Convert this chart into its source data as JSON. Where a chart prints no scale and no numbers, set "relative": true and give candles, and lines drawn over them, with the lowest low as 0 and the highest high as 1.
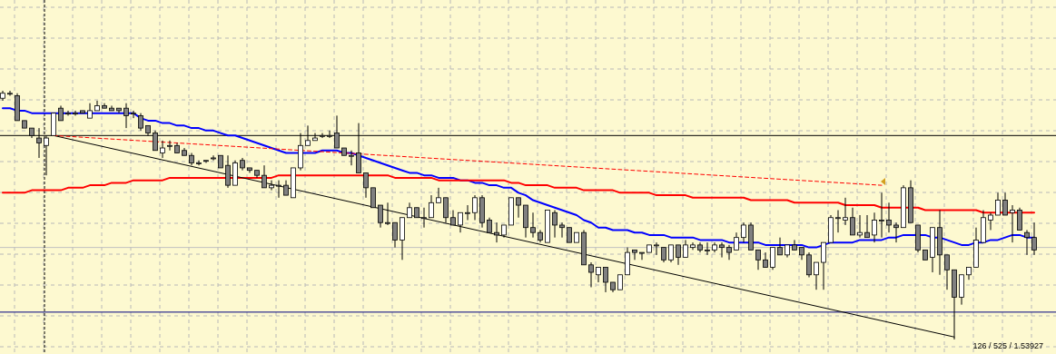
{
  "chart_data": {
    "type": "candlestick",
    "relative": true,
    "grid": true,
    "categories": [
      null,
      null,
      null,
      null,
      null,
      null,
      null,
      null,
      null,
      null,
      null,
      null,
      null,
      null,
      null,
      null,
      null,
      null,
      null,
      null,
      null,
      null,
      null,
      null,
      null,
      null,
      null,
      null,
      null,
      null,
      null,
      null,
      null,
      null,
      null,
      null,
      null,
      null,
      null,
      null,
      null,
      null,
      null,
      null,
      null,
      null,
      null,
      null,
      null,
      null,
      null,
      null,
      null,
      null,
      null,
      null,
      null,
      null,
      null,
      null,
      null,
      null,
      null,
      null,
      null,
      null,
      null,
      null,
      null,
      null,
      null,
      null,
      null,
      null,
      null,
      null,
      null,
      null,
      null,
      null,
      null,
      null,
      null,
      null,
      null,
      null,
      null,
      null,
      null,
      null,
      null,
      null,
      null,
      null,
      null,
      null,
      null,
      null,
      null,
      null,
      null,
      null,
      null,
      null,
      null,
      null,
      null,
      null,
      null,
      null,
      null,
      null,
      null,
      null,
      null,
      null,
      null,
      null,
      null,
      null,
      null,
      null,
      null,
      null,
      null,
      null,
      null,
      null,
      null,
      null,
      null,
      null,
      null,
      null,
      null,
      null,
      null,
      null,
      null,
      null,
      null,
      null,
      null
    ],
    "ohlc": [
      [
        0.97,
        1.0,
        0.96,
        0.99
      ],
      [
        0.99,
        1.0,
        0.98,
        0.99
      ],
      [
        0.98,
        0.99,
        0.88,
        0.88
      ],
      [
        0.88,
        0.88,
        0.85,
        0.85
      ],
      [
        0.85,
        0.85,
        0.81,
        0.82
      ],
      [
        0.81,
        0.85,
        0.73,
        0.79
      ],
      [
        0.78,
        0.82,
        0.66,
        0.81
      ],
      [
        0.82,
        0.91,
        0.82,
        0.91
      ],
      [
        0.93,
        0.94,
        0.88,
        0.88
      ],
      [
        0.91,
        0.92,
        0.9,
        0.91
      ],
      [
        0.91,
        0.92,
        0.9,
        0.91
      ],
      [
        0.92,
        0.92,
        0.91,
        0.91
      ],
      [
        0.89,
        0.95,
        0.89,
        0.92
      ],
      [
        0.92,
        0.96,
        0.92,
        0.94
      ],
      [
        0.94,
        0.95,
        0.93,
        0.93
      ],
      [
        0.93,
        0.94,
        0.92,
        0.92
      ],
      [
        0.93,
        0.93,
        0.91,
        0.92
      ],
      [
        0.93,
        0.95,
        0.85,
        0.9
      ],
      [
        0.91,
        0.92,
        0.89,
        0.91
      ],
      [
        0.9,
        0.91,
        0.84,
        0.85
      ],
      [
        0.86,
        0.86,
        0.82,
        0.83
      ],
      [
        0.83,
        0.84,
        0.76,
        0.76
      ],
      [
        0.75,
        0.8,
        0.73,
        0.77
      ],
      [
        0.78,
        0.8,
        0.76,
        0.78
      ],
      [
        0.78,
        0.79,
        0.75,
        0.75
      ],
      [
        0.76,
        0.77,
        0.74,
        0.74
      ],
      [
        0.74,
        0.75,
        0.7,
        0.71
      ],
      [
        0.71,
        0.72,
        0.7,
        0.71
      ],
      [
        0.72,
        0.72,
        0.71,
        0.72
      ],
      [
        0.73,
        0.74,
        0.72,
        0.73
      ],
      [
        0.74,
        0.74,
        0.69,
        0.69
      ],
      [
        0.7,
        0.74,
        0.61,
        0.62
      ],
      [
        0.62,
        0.72,
        0.62,
        0.71
      ],
      [
        0.72,
        0.73,
        0.68,
        0.69
      ],
      [
        0.69,
        0.69,
        0.67,
        0.68
      ],
      [
        0.68,
        0.68,
        0.65,
        0.66
      ],
      [
        0.66,
        0.7,
        0.61,
        0.61
      ],
      [
        0.61,
        0.64,
        0.6,
        0.62
      ],
      [
        0.62,
        0.64,
        0.57,
        0.62
      ],
      [
        0.62,
        0.64,
        0.58,
        0.58
      ],
      [
        0.57,
        0.69,
        0.57,
        0.69
      ],
      [
        0.69,
        0.83,
        0.68,
        0.78
      ],
      [
        0.78,
        0.86,
        0.78,
        0.8
      ],
      [
        0.8,
        0.83,
        0.8,
        0.81
      ],
      [
        0.82,
        0.83,
        0.81,
        0.82
      ],
      [
        0.82,
        0.84,
        0.81,
        0.82
      ],
      [
        0.83,
        0.9,
        0.77,
        0.77
      ],
      [
        0.77,
        0.77,
        0.74,
        0.74
      ],
      [
        0.74,
        0.76,
        0.7,
        0.74
      ],
      [
        0.75,
        0.87,
        0.67,
        0.67
      ],
      [
        0.67,
        0.67,
        0.57,
        0.61
      ],
      [
        0.61,
        0.61,
        0.53,
        0.53
      ],
      [
        0.54,
        0.54,
        0.45,
        0.47
      ],
      [
        0.47,
        0.55,
        0.46,
        0.47
      ],
      [
        0.47,
        0.47,
        0.37,
        0.4
      ],
      [
        0.4,
        0.49,
        0.32,
        0.49
      ],
      [
        0.49,
        0.55,
        0.49,
        0.53
      ],
      [
        0.53,
        0.53,
        0.49,
        0.49
      ],
      [
        0.49,
        0.53,
        0.45,
        0.49
      ],
      [
        0.49,
        0.58,
        0.49,
        0.55
      ],
      [
        0.55,
        0.61,
        0.55,
        0.57
      ],
      [
        0.57,
        0.57,
        0.47,
        0.49
      ],
      [
        0.49,
        0.52,
        0.46,
        0.46
      ],
      [
        0.46,
        0.51,
        0.43,
        0.51
      ],
      [
        0.51,
        0.54,
        0.48,
        0.51
      ],
      [
        0.51,
        0.58,
        0.48,
        0.57
      ],
      [
        0.57,
        0.58,
        0.45,
        0.47
      ],
      [
        0.48,
        0.49,
        0.43,
        0.43
      ],
      [
        0.43,
        0.47,
        0.39,
        0.42
      ],
      [
        0.42,
        0.46,
        0.41,
        0.46
      ],
      [
        0.46,
        0.57,
        0.46,
        0.57
      ],
      [
        0.57,
        0.57,
        0.49,
        0.54
      ],
      [
        0.54,
        0.54,
        0.41,
        0.45
      ],
      [
        0.45,
        0.51,
        0.41,
        0.43
      ],
      [
        0.43,
        0.44,
        0.39,
        0.4
      ],
      [
        0.39,
        0.52,
        0.39,
        0.52
      ],
      [
        0.51,
        0.52,
        0.41,
        0.46
      ],
      [
        0.46,
        0.47,
        0.41,
        0.45
      ],
      [
        0.45,
        0.45,
        0.39,
        0.39
      ],
      [
        0.39,
        0.43,
        0.39,
        0.43
      ],
      [
        0.43,
        0.44,
        0.3,
        0.3
      ],
      [
        0.3,
        0.31,
        0.21,
        0.27
      ],
      [
        0.26,
        0.29,
        0.23,
        0.29
      ],
      [
        0.29,
        0.29,
        0.19,
        0.23
      ],
      [
        0.23,
        0.23,
        0.19,
        0.2
      ],
      [
        0.2,
        0.26,
        0.2,
        0.26
      ],
      [
        0.26,
        0.37,
        0.26,
        0.35
      ],
      [
        0.36,
        0.36,
        0.32,
        0.35
      ],
      [
        0.35,
        0.35,
        0.32,
        0.35
      ],
      [
        0.35,
        0.38,
        0.35,
        0.38
      ],
      [
        0.38,
        0.39,
        0.34,
        0.38
      ],
      [
        0.37,
        0.37,
        0.31,
        0.32
      ],
      [
        0.32,
        0.38,
        0.31,
        0.38
      ],
      [
        0.38,
        0.38,
        0.3,
        0.33
      ],
      [
        0.33,
        0.4,
        0.33,
        0.38
      ],
      [
        0.37,
        0.39,
        0.36,
        0.38
      ],
      [
        0.38,
        0.39,
        0.35,
        0.36
      ],
      [
        0.36,
        0.39,
        0.34,
        0.36
      ],
      [
        0.36,
        0.39,
        0.35,
        0.38
      ],
      [
        0.38,
        0.39,
        0.33,
        0.37
      ],
      [
        0.37,
        0.38,
        0.32,
        0.35
      ],
      [
        0.36,
        0.43,
        0.36,
        0.41
      ],
      [
        0.41,
        0.47,
        0.39,
        0.46
      ],
      [
        0.46,
        0.47,
        0.36,
        0.36
      ],
      [
        0.36,
        0.36,
        0.28,
        0.32
      ],
      [
        0.32,
        0.35,
        0.29,
        0.29
      ],
      [
        0.29,
        0.37,
        0.28,
        0.37
      ],
      [
        0.37,
        0.41,
        0.34,
        0.34
      ],
      [
        0.34,
        0.38,
        0.33,
        0.38
      ],
      [
        0.38,
        0.4,
        0.36,
        0.36
      ],
      [
        0.37,
        0.37,
        0.32,
        0.34
      ],
      [
        0.34,
        0.35,
        0.25,
        0.26
      ],
      [
        0.26,
        0.31,
        0.2,
        0.31
      ],
      [
        0.31,
        0.39,
        0.2,
        0.39
      ],
      [
        0.39,
        0.5,
        0.39,
        0.49
      ],
      [
        0.49,
        0.52,
        0.43,
        0.49
      ],
      [
        0.48,
        0.57,
        0.46,
        0.49
      ],
      [
        0.49,
        0.53,
        0.42,
        0.42
      ],
      [
        0.42,
        0.5,
        0.41,
        0.43
      ],
      [
        0.43,
        0.5,
        0.41,
        0.41
      ],
      [
        0.42,
        0.51,
        0.39,
        0.48
      ],
      [
        0.48,
        0.59,
        0.41,
        0.48
      ],
      [
        0.48,
        0.55,
        0.43,
        0.46
      ],
      [
        0.46,
        0.47,
        0.39,
        0.45
      ],
      [
        0.45,
        0.62,
        0.45,
        0.61
      ],
      [
        0.61,
        0.64,
        0.47,
        0.47
      ],
      [
        0.46,
        0.46,
        0.35,
        0.36
      ],
      [
        0.36,
        0.36,
        0.32,
        0.32
      ],
      [
        0.33,
        0.45,
        0.27,
        0.45
      ],
      [
        0.45,
        0.52,
        0.26,
        0.34
      ],
      [
        0.34,
        0.34,
        0.2,
        0.28
      ],
      [
        0.28,
        0.28,
        0.0,
        0.17
      ],
      [
        0.17,
        0.26,
        0.14,
        0.26
      ],
      [
        0.26,
        0.29,
        0.24,
        0.29
      ],
      [
        0.29,
        0.45,
        0.29,
        0.4
      ],
      [
        0.39,
        0.52,
        0.39,
        0.49
      ],
      [
        0.48,
        0.51,
        0.44,
        0.5
      ],
      [
        0.5,
        0.59,
        0.5,
        0.56
      ],
      [
        0.56,
        0.59,
        0.5,
        0.5
      ],
      [
        0.51,
        0.54,
        0.39,
        0.52
      ],
      [
        0.52,
        0.53,
        0.44,
        0.44
      ],
      [
        0.43,
        0.44,
        0.34,
        0.41
      ],
      [
        0.41,
        0.47,
        0.34,
        0.36
      ]
    ],
    "series": [
      {
        "type": "line",
        "color": "#0000ff",
        "values": [
          0.93,
          0.93,
          0.92,
          0.92,
          0.91,
          0.91,
          0.91,
          0.91,
          0.91,
          0.91,
          0.91,
          0.91,
          0.91,
          0.91,
          0.91,
          0.91,
          0.91,
          0.91,
          0.91,
          0.89,
          0.88,
          0.88,
          0.87,
          0.87,
          0.86,
          0.86,
          0.85,
          0.85,
          0.84,
          0.84,
          0.83,
          0.82,
          0.82,
          0.81,
          0.8,
          0.79,
          0.78,
          0.77,
          0.76,
          0.75,
          0.75,
          0.75,
          0.75,
          0.75,
          0.76,
          0.76,
          0.76,
          0.75,
          0.75,
          0.74,
          0.73,
          0.72,
          0.71,
          0.7,
          0.69,
          0.68,
          0.67,
          0.67,
          0.66,
          0.66,
          0.65,
          0.65,
          0.65,
          0.64,
          0.64,
          0.63,
          0.63,
          0.62,
          0.62,
          0.61,
          0.61,
          0.59,
          0.58,
          0.56,
          0.55,
          0.54,
          0.53,
          0.52,
          0.51,
          0.5,
          0.48,
          0.47,
          0.45,
          0.45,
          0.44,
          0.44,
          0.44,
          0.43,
          0.43,
          0.42,
          0.42,
          0.42,
          0.41,
          0.41,
          0.41,
          0.41,
          0.4,
          0.4,
          0.4,
          0.4,
          0.39,
          0.39,
          0.39,
          0.39,
          0.39,
          0.38,
          0.38,
          0.38,
          0.38,
          0.38,
          0.38,
          0.37,
          0.37,
          0.38,
          0.39,
          0.39,
          0.39,
          0.39,
          0.4,
          0.4,
          0.4,
          0.4,
          0.41,
          0.41,
          0.42,
          0.42,
          0.42,
          0.42,
          0.41,
          0.41,
          0.4,
          0.39,
          0.38,
          0.38,
          0.39,
          0.39,
          0.4,
          0.4,
          0.41,
          0.42,
          0.42,
          0.41,
          0.41
        ]
      },
      {
        "type": "line",
        "color": "#ff0000",
        "values": [
          0.59,
          0.59,
          0.59,
          0.59,
          0.6,
          0.6,
          0.6,
          0.6,
          0.6,
          0.61,
          0.61,
          0.61,
          0.62,
          0.62,
          0.62,
          0.63,
          0.63,
          0.63,
          0.64,
          0.64,
          0.64,
          0.64,
          0.64,
          0.65,
          0.65,
          0.65,
          0.65,
          0.65,
          0.65,
          0.65,
          0.65,
          0.65,
          0.65,
          0.65,
          0.65,
          0.65,
          0.65,
          0.65,
          0.66,
          0.66,
          0.66,
          0.66,
          0.66,
          0.66,
          0.66,
          0.66,
          0.66,
          0.66,
          0.66,
          0.66,
          0.66,
          0.66,
          0.66,
          0.66,
          0.65,
          0.65,
          0.65,
          0.65,
          0.65,
          0.65,
          0.64,
          0.64,
          0.64,
          0.64,
          0.64,
          0.64,
          0.64,
          0.64,
          0.64,
          0.64,
          0.63,
          0.63,
          0.62,
          0.62,
          0.62,
          0.62,
          0.61,
          0.61,
          0.61,
          0.61,
          0.6,
          0.6,
          0.6,
          0.6,
          0.6,
          0.59,
          0.59,
          0.59,
          0.59,
          0.59,
          0.58,
          0.58,
          0.58,
          0.58,
          0.58,
          0.57,
          0.57,
          0.57,
          0.57,
          0.57,
          0.57,
          0.57,
          0.57,
          0.56,
          0.56,
          0.56,
          0.56,
          0.56,
          0.56,
          0.55,
          0.55,
          0.55,
          0.55,
          0.55,
          0.55,
          0.55,
          0.54,
          0.54,
          0.54,
          0.54,
          0.54,
          0.53,
          0.53,
          0.53,
          0.53,
          0.53,
          0.53,
          0.52,
          0.52,
          0.52,
          0.52,
          0.52,
          0.52,
          0.52,
          0.52,
          0.51,
          0.51,
          0.51,
          0.51,
          0.51,
          0.51,
          0.51,
          0.51
        ]
      },
      {
        "type": "line",
        "color": "#000000",
        "values": [
          null,
          null,
          null,
          null,
          null,
          null,
          null,
          0.82,
          null,
          null,
          null,
          null,
          null,
          null,
          null,
          null,
          null,
          null,
          null,
          null,
          null,
          null,
          null,
          null,
          null,
          null,
          null,
          null,
          null,
          null,
          null,
          null,
          null,
          null,
          null,
          null,
          null,
          null,
          null,
          null,
          null,
          null,
          null,
          null,
          null,
          null,
          null,
          null,
          null,
          null,
          null,
          null,
          null,
          null,
          null,
          null,
          null,
          null,
          null,
          null,
          null,
          null,
          null,
          null,
          null,
          null,
          null,
          null,
          null,
          null,
          null,
          null,
          null,
          null,
          null,
          null,
          null,
          null,
          null,
          null,
          null,
          null,
          null,
          null,
          null,
          null,
          null,
          null,
          null,
          null,
          null,
          null,
          null,
          null,
          null,
          null,
          null,
          null,
          null,
          null,
          null,
          null,
          null,
          null,
          null,
          null,
          null,
          null,
          null,
          null,
          null,
          null,
          null,
          null,
          null,
          null,
          null,
          null,
          null,
          null,
          null,
          null,
          null,
          null,
          null,
          null,
          null,
          null,
          null,
          null,
          null,
          0.01,
          null,
          null,
          null,
          null,
          null,
          null,
          null,
          null,
          null,
          null,
          null
        ]
      },
      {
        "type": "line",
        "color": "#ff0000",
        "line_style": "dashed",
        "values": [
          null,
          null,
          null,
          null,
          null,
          null,
          null,
          0.82,
          null,
          null,
          null,
          null,
          null,
          null,
          null,
          null,
          null,
          null,
          null,
          null,
          null,
          null,
          null,
          null,
          null,
          null,
          null,
          null,
          null,
          null,
          null,
          null,
          null,
          null,
          null,
          null,
          null,
          null,
          null,
          null,
          null,
          null,
          null,
          null,
          null,
          null,
          null,
          null,
          null,
          null,
          null,
          null,
          null,
          null,
          null,
          null,
          null,
          null,
          null,
          null,
          null,
          null,
          null,
          null,
          null,
          null,
          null,
          null,
          null,
          null,
          null,
          null,
          null,
          null,
          null,
          null,
          null,
          null,
          null,
          null,
          null,
          null,
          null,
          null,
          null,
          null,
          null,
          null,
          null,
          null,
          null,
          null,
          null,
          null,
          null,
          null,
          null,
          null,
          null,
          null,
          null,
          null,
          null,
          null,
          null,
          null,
          null,
          null,
          null,
          null,
          null,
          null,
          null,
          null,
          null,
          null,
          null,
          null,
          null,
          null,
          null,
          0.62,
          null,
          null,
          null,
          null,
          null,
          null,
          null,
          null,
          null,
          null,
          null,
          null,
          null,
          null,
          null,
          null,
          null,
          null,
          null,
          null,
          null
        ]
      }
    ],
    "ref_lines": [
      {
        "axis": "y",
        "value": 0.82,
        "color": "#000000"
      },
      {
        "axis": "y",
        "value": 0.37,
        "color": "#c0c0c0"
      },
      {
        "axis": "y",
        "value": 0.11,
        "color": "#000080"
      }
    ],
    "annotations": [
      "126 / 525 / 1.53927"
    ]
  }
}
